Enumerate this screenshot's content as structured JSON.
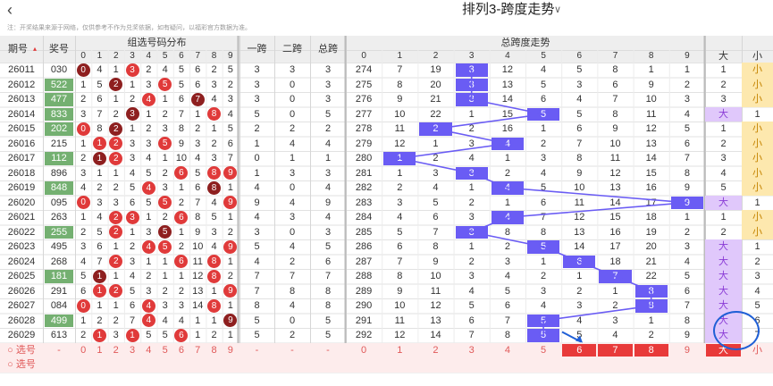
{
  "header": {
    "back_icon": "chevron-left-icon",
    "title": "排列3-跨度走势",
    "title_caret_icon": "chevron-down-icon"
  },
  "notice": "注：开奖结果来源于网络，仅供参考不作为兑奖依据，如有疑问，以福彩官方数据为准。",
  "columns": {
    "issue": "期号",
    "issue_sort_icon": "sort-arrows-icon",
    "award": "奖号",
    "dist_group": "组选号码分布",
    "span1": "一跨",
    "span2": "二跨",
    "span_total": "总跨",
    "trend_group": "总跨度走势",
    "big": "大",
    "small": "小",
    "digits": [
      "0",
      "1",
      "2",
      "3",
      "4",
      "5",
      "6",
      "7",
      "8",
      "9"
    ]
  },
  "colors": {
    "accent": "#6a5cf4",
    "ball_red": "#e03a3a",
    "ball_dark": "#8e1f1f",
    "award_bg": "#74b071",
    "big_bg": "#e0c8fb",
    "small_bg": "#fde8ae"
  },
  "rows": [
    {
      "issue": "26011",
      "award": "030",
      "award_bg": false,
      "dist": [
        "0",
        "4",
        "1",
        "3",
        "2",
        "4",
        "5",
        "6",
        "2",
        "5"
      ],
      "dist_balls": {
        "0": "dark",
        "3": "red"
      },
      "span1": "3",
      "span2": "3",
      "span_total": "3",
      "trend": [
        "274",
        "7",
        "19",
        "3",
        "12",
        "4",
        "5",
        "8",
        "1",
        "1"
      ],
      "big": "1",
      "small": "小"
    },
    {
      "issue": "26012",
      "award": "522",
      "award_bg": true,
      "dist": [
        "1",
        "5",
        "2",
        "1",
        "3",
        "5",
        "5",
        "6",
        "3",
        "2"
      ],
      "dist_balls": {
        "2": "dark",
        "5": "red"
      },
      "span1": "3",
      "span2": "0",
      "span_total": "3",
      "trend": [
        "275",
        "8",
        "20",
        "3",
        "13",
        "5",
        "3",
        "6",
        "9",
        "2"
      ],
      "big": "2",
      "small": "小"
    },
    {
      "issue": "26013",
      "award": "477",
      "award_bg": true,
      "dist": [
        "2",
        "6",
        "1",
        "2",
        "4",
        "1",
        "6",
        "7",
        "4",
        "3"
      ],
      "dist_balls": {
        "4": "red",
        "7": "dark"
      },
      "span1": "3",
      "span2": "0",
      "span_total": "3",
      "trend": [
        "276",
        "9",
        "21",
        "3",
        "14",
        "6",
        "4",
        "7",
        "10",
        "3"
      ],
      "big": "3",
      "small": "小"
    },
    {
      "issue": "26014",
      "award": "833",
      "award_bg": true,
      "dist": [
        "3",
        "7",
        "2",
        "3",
        "1",
        "2",
        "7",
        "1",
        "8",
        "4"
      ],
      "dist_balls": {
        "3": "dark",
        "8": "red"
      },
      "span1": "5",
      "span2": "0",
      "span_total": "5",
      "trend": [
        "277",
        "10",
        "22",
        "1",
        "15",
        "5",
        "5",
        "8",
        "11",
        "4"
      ],
      "big": "大",
      "small": "1"
    },
    {
      "issue": "26015",
      "award": "202",
      "award_bg": true,
      "dist": [
        "0",
        "8",
        "2",
        "1",
        "2",
        "3",
        "8",
        "2",
        "1",
        "5"
      ],
      "dist_balls": {
        "0": "red",
        "2": "dark"
      },
      "span1": "2",
      "span2": "2",
      "span_total": "2",
      "trend": [
        "278",
        "11",
        "2",
        "2",
        "16",
        "1",
        "6",
        "9",
        "12",
        "5"
      ],
      "big": "1",
      "small": "小"
    },
    {
      "issue": "26016",
      "award": "215",
      "award_bg": false,
      "dist": [
        "1",
        "1",
        "2",
        "3",
        "3",
        "5",
        "9",
        "3",
        "2",
        "6"
      ],
      "dist_balls": {
        "1": "red",
        "2": "red",
        "5": "red"
      },
      "span1": "1",
      "span2": "4",
      "span_total": "4",
      "trend": [
        "279",
        "12",
        "1",
        "3",
        "4",
        "2",
        "7",
        "10",
        "13",
        "6"
      ],
      "big": "2",
      "small": "小"
    },
    {
      "issue": "26017",
      "award": "112",
      "award_bg": true,
      "dist": [
        "2",
        "1",
        "2",
        "3",
        "4",
        "1",
        "10",
        "4",
        "3",
        "7"
      ],
      "dist_balls": {
        "1": "dark",
        "2": "red"
      },
      "span1": "0",
      "span2": "1",
      "span_total": "1",
      "trend": [
        "280",
        "1",
        "2",
        "4",
        "1",
        "3",
        "8",
        "11",
        "14",
        "7"
      ],
      "big": "3",
      "small": "小"
    },
    {
      "issue": "26018",
      "award": "896",
      "award_bg": false,
      "dist": [
        "3",
        "1",
        "1",
        "4",
        "5",
        "2",
        "6",
        "5",
        "8",
        "9"
      ],
      "dist_balls": {
        "6": "red",
        "8": "red",
        "9": "red"
      },
      "span1": "1",
      "span2": "3",
      "span_total": "3",
      "trend": [
        "281",
        "1",
        "3",
        "3",
        "2",
        "4",
        "9",
        "12",
        "15",
        "8"
      ],
      "big": "4",
      "small": "小"
    },
    {
      "issue": "26019",
      "award": "848",
      "award_bg": true,
      "dist": [
        "4",
        "2",
        "2",
        "5",
        "4",
        "3",
        "1",
        "6",
        "8",
        "1"
      ],
      "dist_balls": {
        "4": "red",
        "8": "dark"
      },
      "span1": "4",
      "span2": "0",
      "span_total": "4",
      "trend": [
        "282",
        "2",
        "4",
        "1",
        "4",
        "5",
        "10",
        "13",
        "16",
        "9"
      ],
      "big": "5",
      "small": "小"
    },
    {
      "issue": "26020",
      "award": "095",
      "award_bg": false,
      "dist": [
        "0",
        "3",
        "3",
        "6",
        "5",
        "5",
        "2",
        "7",
        "4",
        "9"
      ],
      "dist_balls": {
        "0": "red",
        "5": "red",
        "9": "red"
      },
      "span1": "9",
      "span2": "4",
      "span_total": "9",
      "trend": [
        "283",
        "3",
        "5",
        "2",
        "1",
        "6",
        "11",
        "14",
        "17",
        "9"
      ],
      "big": "大",
      "small": "1"
    },
    {
      "issue": "26021",
      "award": "263",
      "award_bg": false,
      "dist": [
        "1",
        "4",
        "2",
        "3",
        "1",
        "2",
        "6",
        "8",
        "5",
        "1"
      ],
      "dist_balls": {
        "2": "red",
        "3": "red",
        "6": "red"
      },
      "span1": "4",
      "span2": "3",
      "span_total": "4",
      "trend": [
        "284",
        "4",
        "6",
        "3",
        "4",
        "7",
        "12",
        "15",
        "18",
        "1"
      ],
      "big": "1",
      "small": "小"
    },
    {
      "issue": "26022",
      "award": "255",
      "award_bg": true,
      "dist": [
        "2",
        "5",
        "2",
        "1",
        "3",
        "5",
        "1",
        "9",
        "3",
        "2"
      ],
      "dist_balls": {
        "2": "red",
        "5": "dark"
      },
      "span1": "3",
      "span2": "0",
      "span_total": "3",
      "trend": [
        "285",
        "5",
        "7",
        "3",
        "8",
        "8",
        "13",
        "16",
        "19",
        "2"
      ],
      "big": "2",
      "small": "小"
    },
    {
      "issue": "26023",
      "award": "495",
      "award_bg": false,
      "dist": [
        "3",
        "6",
        "1",
        "2",
        "4",
        "5",
        "2",
        "10",
        "4",
        "9"
      ],
      "dist_balls": {
        "4": "red",
        "5": "red",
        "9": "red"
      },
      "span1": "5",
      "span2": "4",
      "span_total": "5",
      "trend": [
        "286",
        "6",
        "8",
        "1",
        "2",
        "5",
        "14",
        "17",
        "20",
        "3"
      ],
      "big": "大",
      "small": "1"
    },
    {
      "issue": "26024",
      "award": "268",
      "award_bg": false,
      "dist": [
        "4",
        "7",
        "2",
        "3",
        "1",
        "1",
        "6",
        "11",
        "8",
        "1"
      ],
      "dist_balls": {
        "2": "red",
        "6": "red",
        "8": "red"
      },
      "span1": "4",
      "span2": "2",
      "span_total": "6",
      "trend": [
        "287",
        "7",
        "9",
        "2",
        "3",
        "1",
        "6",
        "18",
        "21",
        "4"
      ],
      "big": "大",
      "small": "2"
    },
    {
      "issue": "26025",
      "award": "181",
      "award_bg": true,
      "dist": [
        "5",
        "1",
        "1",
        "4",
        "2",
        "1",
        "1",
        "12",
        "8",
        "2"
      ],
      "dist_balls": {
        "1": "dark",
        "8": "red"
      },
      "span1": "7",
      "span2": "7",
      "span_total": "7",
      "trend": [
        "288",
        "8",
        "10",
        "3",
        "4",
        "2",
        "1",
        "7",
        "22",
        "5"
      ],
      "big": "大",
      "small": "3"
    },
    {
      "issue": "26026",
      "award": "291",
      "award_bg": false,
      "dist": [
        "6",
        "1",
        "2",
        "5",
        "3",
        "2",
        "2",
        "13",
        "1",
        "9"
      ],
      "dist_balls": {
        "1": "red",
        "2": "red",
        "9": "red"
      },
      "span1": "7",
      "span2": "8",
      "span_total": "8",
      "trend": [
        "289",
        "9",
        "11",
        "4",
        "5",
        "3",
        "2",
        "1",
        "8",
        "6"
      ],
      "big": "大",
      "small": "4"
    },
    {
      "issue": "26027",
      "award": "084",
      "award_bg": false,
      "dist": [
        "0",
        "1",
        "1",
        "6",
        "4",
        "3",
        "3",
        "14",
        "8",
        "1"
      ],
      "dist_balls": {
        "0": "red",
        "4": "red",
        "8": "red"
      },
      "span1": "8",
      "span2": "4",
      "span_total": "8",
      "trend": [
        "290",
        "10",
        "12",
        "5",
        "6",
        "4",
        "3",
        "2",
        "8",
        "7"
      ],
      "big": "大",
      "small": "5"
    },
    {
      "issue": "26028",
      "award": "499",
      "award_bg": true,
      "dist": [
        "1",
        "2",
        "2",
        "7",
        "4",
        "4",
        "4",
        "1",
        "1",
        "9"
      ],
      "dist_balls": {
        "4": "red",
        "9": "dark"
      },
      "span1": "5",
      "span2": "0",
      "span_total": "5",
      "trend": [
        "291",
        "11",
        "13",
        "6",
        "7",
        "5",
        "4",
        "3",
        "1",
        "8"
      ],
      "big": "大",
      "small": "6"
    },
    {
      "issue": "26029",
      "award": "613",
      "award_bg": false,
      "dist": [
        "2",
        "1",
        "3",
        "1",
        "5",
        "5",
        "6",
        "1",
        "2",
        "1"
      ],
      "dist_balls": {
        "1": "red",
        "3": "red",
        "6": "red"
      },
      "span1": "5",
      "span2": "2",
      "span_total": "5",
      "trend": [
        "292",
        "12",
        "14",
        "7",
        "8",
        "5",
        "5",
        "4",
        "2",
        "9"
      ],
      "big": "大",
      "small": "7"
    }
  ],
  "selection": {
    "label": "选号",
    "dist": [
      "0",
      "1",
      "2",
      "3",
      "4",
      "5",
      "6",
      "7",
      "8",
      "9"
    ],
    "span1": "-",
    "span2": "-",
    "span_total": "-",
    "trend": [
      "0",
      "1",
      "2",
      "3",
      "4",
      "5",
      "6",
      "7",
      "8",
      "9"
    ],
    "selected": [
      "6",
      "7",
      "8"
    ],
    "big": "大",
    "small": "小"
  },
  "selection2_label": "选号"
}
